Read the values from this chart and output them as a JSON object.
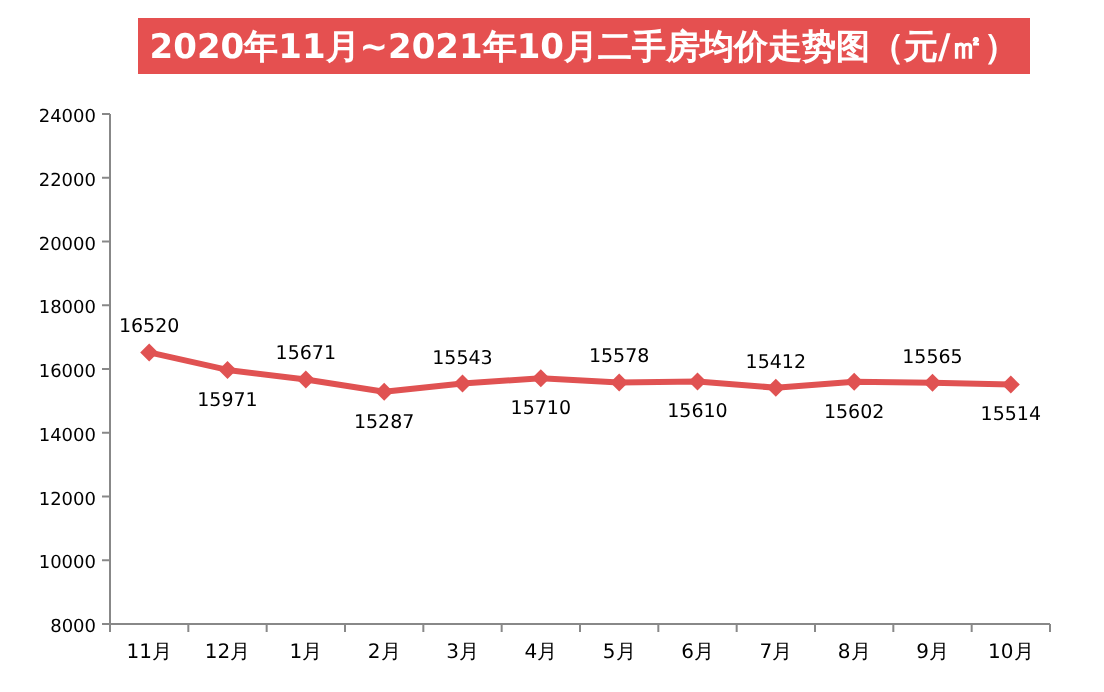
{
  "chart_data": {
    "type": "line",
    "title": "2020年11月~2021年10月二手房均价走势图（元/㎡）",
    "categories": [
      "11月",
      "12月",
      "1月",
      "2月",
      "3月",
      "4月",
      "5月",
      "6月",
      "7月",
      "8月",
      "9月",
      "10月"
    ],
    "series": [
      {
        "color": "#e05252",
        "values": [
          16520,
          15971,
          15671,
          15287,
          15543,
          15710,
          15578,
          15610,
          15412,
          15602,
          15565,
          15514
        ]
      }
    ],
    "ylim": [
      8000,
      24000
    ],
    "yticks": [
      8000,
      10000,
      12000,
      14000,
      16000,
      18000,
      20000,
      22000,
      24000
    ],
    "marker": "diamond",
    "line_style": "solid",
    "data_labels": true,
    "grid": false
  }
}
